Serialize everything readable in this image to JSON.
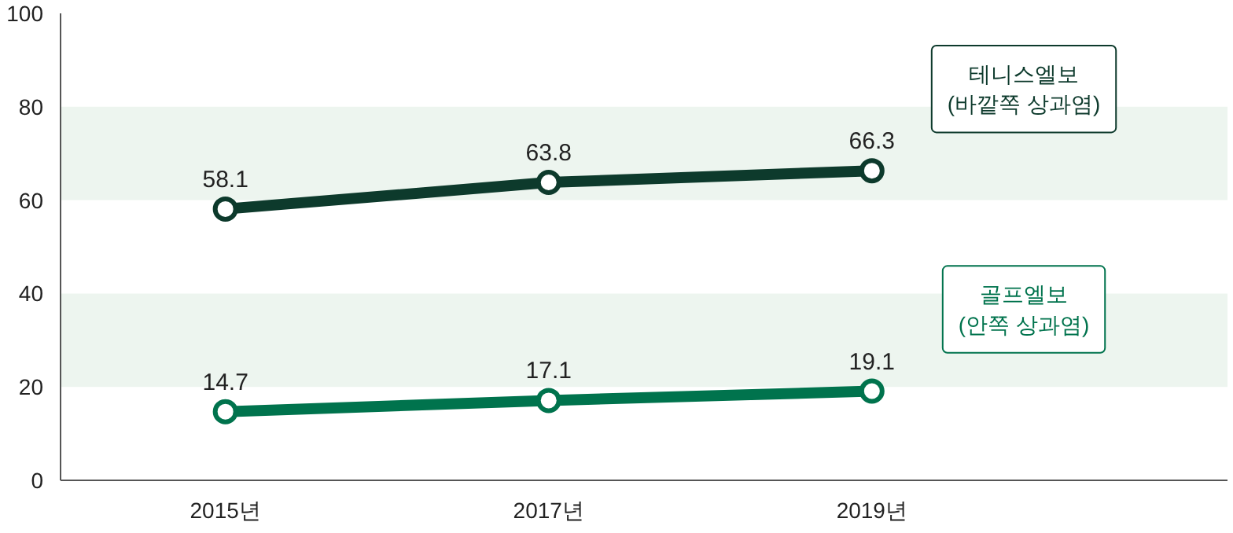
{
  "chart_data": {
    "type": "line",
    "categories": [
      "2015년",
      "2017년",
      "2019년"
    ],
    "series": [
      {
        "name": "테니스엘보\n(바깥쪽 상과염)",
        "color": "#0d3a2c",
        "values": [
          58.1,
          63.8,
          66.3
        ]
      },
      {
        "name": "골프엘보\n(안쪽 상과염)",
        "color": "#00734d",
        "values": [
          14.7,
          17.1,
          19.1
        ]
      }
    ],
    "ylim": [
      0,
      100
    ],
    "yticks": [
      0,
      20,
      40,
      60,
      80,
      100
    ],
    "bands": [
      {
        "axis": "y",
        "from": 60,
        "to": 80,
        "color": "#edf5ef"
      },
      {
        "axis": "y",
        "from": 20,
        "to": 40,
        "color": "#edf5ef"
      }
    ],
    "data_labels": true,
    "marker": "circle",
    "line_style": "solid",
    "grid": false,
    "legend": false
  }
}
